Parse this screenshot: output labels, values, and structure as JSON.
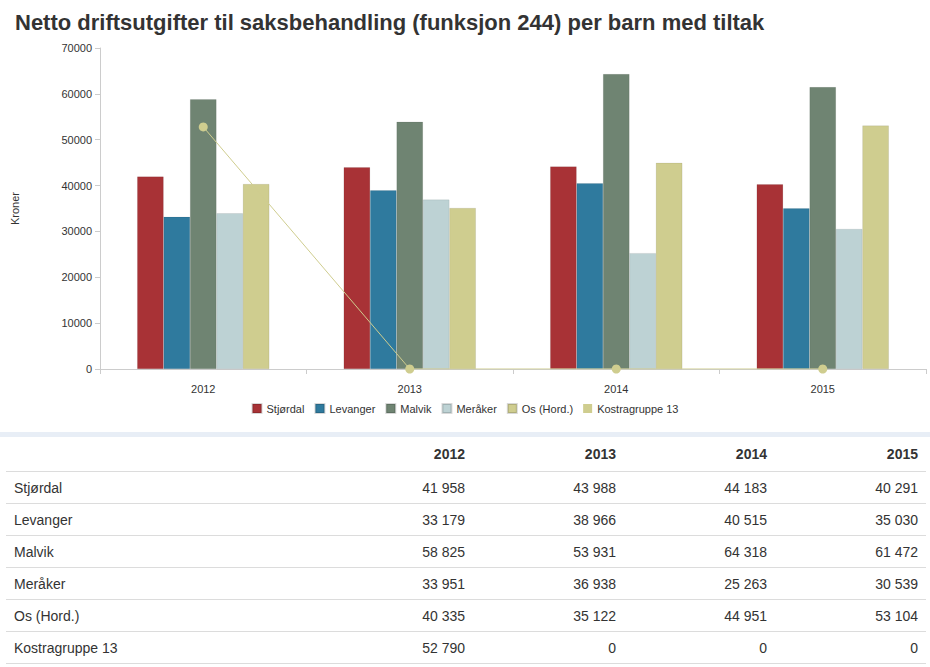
{
  "chart_data": {
    "type": "bar",
    "title": "Netto driftsutgifter til saksbehandling (funksjon 244) per barn med tiltak",
    "y_label": "Kroner",
    "categories": [
      "2012",
      "2013",
      "2014",
      "2015"
    ],
    "series": [
      {
        "name": "Stjørdal",
        "color": "#a83236",
        "values": [
          41958,
          43988,
          44183,
          40291
        ]
      },
      {
        "name": "Levanger",
        "color": "#2f7a9e",
        "values": [
          33179,
          38966,
          40515,
          35030
        ]
      },
      {
        "name": "Malvik",
        "color": "#6f8472",
        "values": [
          58825,
          53931,
          64318,
          61472
        ]
      },
      {
        "name": "Meråker",
        "color": "#bdd2d4",
        "values": [
          33951,
          36938,
          25263,
          30539
        ]
      },
      {
        "name": "Os (Hord.)",
        "color": "#cfcd8f",
        "values": [
          40335,
          35122,
          44951,
          53104
        ]
      },
      {
        "name": "Kostragruppe 13",
        "color": "#cfcd8f",
        "type": "line",
        "marker": "circle",
        "values": [
          52790,
          0,
          0,
          0
        ]
      }
    ],
    "ylim": [
      0,
      70000
    ],
    "yticks": [
      0,
      10000,
      20000,
      30000,
      40000,
      50000,
      60000,
      70000
    ],
    "grid": false,
    "legend": "bottom",
    "data_labels": false
  },
  "table": {
    "header": [
      "2012",
      "2013",
      "2014",
      "2015"
    ],
    "rows": [
      {
        "label": "Stjørdal",
        "cells": [
          "41 958",
          "43 988",
          "44 183",
          "40 291"
        ]
      },
      {
        "label": "Levanger",
        "cells": [
          "33 179",
          "38 966",
          "40 515",
          "35 030"
        ]
      },
      {
        "label": "Malvik",
        "cells": [
          "58 825",
          "53 931",
          "64 318",
          "61 472"
        ]
      },
      {
        "label": "Meråker",
        "cells": [
          "33 951",
          "36 938",
          "25 263",
          "30 539"
        ]
      },
      {
        "label": "Os (Hord.)",
        "cells": [
          "40 335",
          "35 122",
          "44 951",
          "53 104"
        ]
      },
      {
        "label": "Kostragruppe 13",
        "cells": [
          "52 790",
          "0",
          "0",
          "0"
        ]
      }
    ]
  }
}
